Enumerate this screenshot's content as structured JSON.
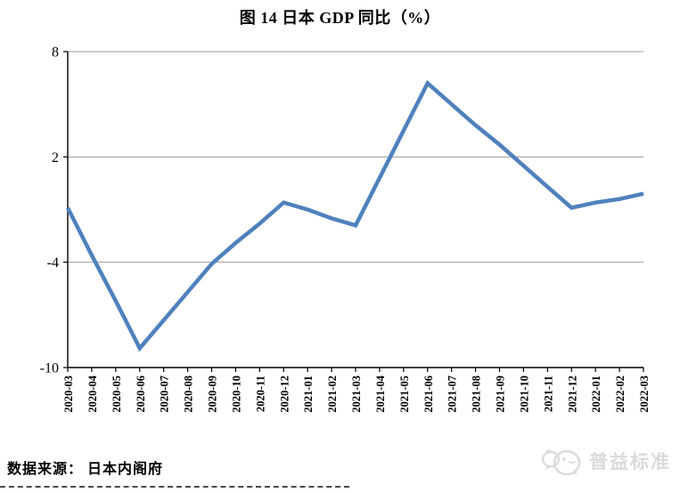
{
  "title": "图 14 日本 GDP 同比（%）",
  "source": "数据来源： 日本内阁府",
  "brand": {
    "text": "普益标准"
  },
  "colors": {
    "line": "#4F81BD",
    "gridline": "#9b9b9b",
    "axis": "#000000",
    "brand_gray": "#dadada"
  },
  "chart_data": {
    "type": "line",
    "title": "图 14 日本 GDP 同比（%）",
    "xlabel": "",
    "ylabel": "",
    "ylim": [
      -10,
      8
    ],
    "yticks": [
      8,
      2,
      -4,
      -10
    ],
    "grid": true,
    "legend": "none",
    "x_tick_rotation_deg": 90,
    "categories": [
      "2020-03",
      "2020-04",
      "2020-05",
      "2020-06",
      "2020-07",
      "2020-08",
      "2020-09",
      "2020-10",
      "2020-11",
      "2020-12",
      "2021-01",
      "2021-02",
      "2021-03",
      "2021-04",
      "2021-05",
      "2021-06",
      "2021-07",
      "2021-08",
      "2021-09",
      "2021-10",
      "2021-11",
      "2021-12",
      "2022-01",
      "2022-02",
      "2022-03"
    ],
    "values": [
      -0.9,
      -3.6,
      -6.2,
      -8.9,
      -7.3,
      -5.7,
      -4.1,
      -2.9,
      -1.8,
      -0.6,
      -1.0,
      -1.5,
      -1.9,
      0.8,
      3.5,
      6.2,
      5.0,
      3.8,
      2.7,
      1.5,
      0.3,
      -0.9,
      -0.6,
      -0.4,
      -0.1
    ]
  }
}
